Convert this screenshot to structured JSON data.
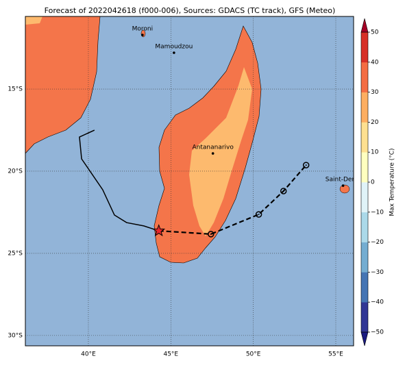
{
  "map": {
    "type": "map",
    "title": "Forecast of 2022042618 (f000-006), Sources: GDACS (TC track), GFS (Meteo)",
    "xlim": [
      36.18,
      56.08
    ],
    "ylim": [
      -30.63,
      -10.58
    ],
    "xticks": [
      {
        "value": 40,
        "label": "40°E"
      },
      {
        "value": 45,
        "label": "45°E"
      },
      {
        "value": 50,
        "label": "50°E"
      },
      {
        "value": 55,
        "label": "55°E"
      }
    ],
    "yticks": [
      {
        "value": -15,
        "label": "15°S"
      },
      {
        "value": -20,
        "label": "20°S"
      },
      {
        "value": -25,
        "label": "25°S"
      },
      {
        "value": -30,
        "label": "30°S"
      }
    ],
    "grid": true,
    "cities": [
      {
        "name": "Moroni",
        "lon": 43.28,
        "lat": -11.71
      },
      {
        "name": "Mamoudzou",
        "lon": 45.19,
        "lat": -12.79
      },
      {
        "name": "Antananarivo",
        "lon": 47.55,
        "lat": -18.92
      },
      {
        "name": "Saint-Denis",
        "lon": 55.44,
        "lat": -20.88
      }
    ],
    "track": {
      "past": {
        "lon": [
          40.37,
          39.46,
          39.59,
          40.87,
          41.58,
          42.32,
          43.36,
          44.27
        ],
        "lat": [
          -17.5,
          -17.92,
          -19.25,
          -21.13,
          -22.67,
          -23.13,
          -23.33,
          -23.63
        ]
      },
      "forecast": {
        "lon": [
          44.27,
          47.43,
          50.33,
          51.83,
          53.2
        ],
        "lat": [
          -23.63,
          -23.83,
          -22.63,
          -21.21,
          -19.63
        ]
      }
    },
    "colorbar": {
      "label": "Max Temperature (°C)",
      "lim": [
        -50,
        50
      ],
      "ticks": [
        {
          "value": -50,
          "label": "−50"
        },
        {
          "value": -40,
          "label": "−40"
        },
        {
          "value": -30,
          "label": "−30"
        },
        {
          "value": -20,
          "label": "−20"
        },
        {
          "value": -10,
          "label": "−10"
        },
        0,
        10,
        20,
        30,
        40,
        50
      ],
      "colors": [
        "#313695",
        "#4575b4",
        "#74add1",
        "#abd9e9",
        "#e0f3f8",
        "#ffffbf",
        "#fee090",
        "#fdae61",
        "#f46d43",
        "#d73027"
      ],
      "under": "#1a1a80",
      "over": "#a50026"
    }
  }
}
